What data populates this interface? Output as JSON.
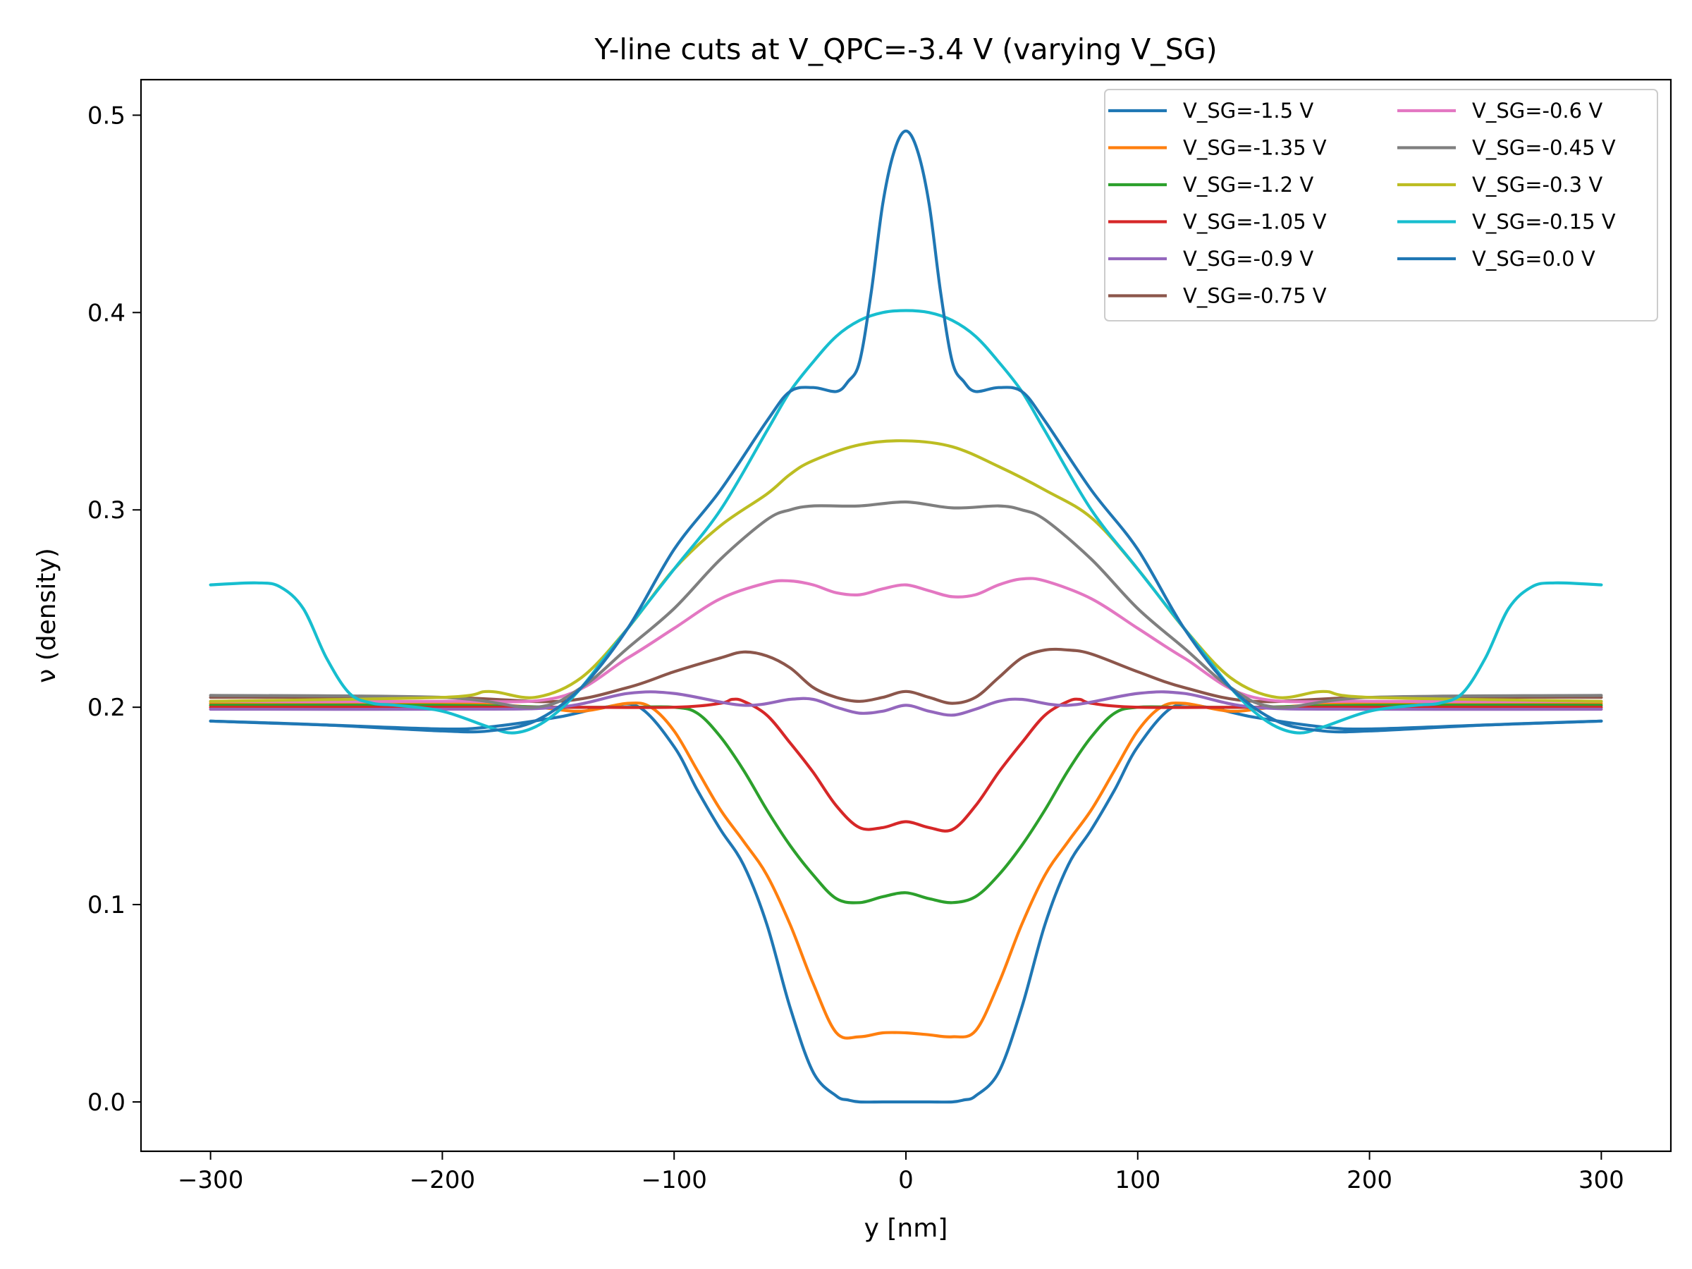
{
  "chart_data": {
    "type": "line",
    "title": "Y-line cuts at V_QPC=-3.4 V (varying V_SG)",
    "xlabel": "y [nm]",
    "ylabel": "ν (density)",
    "xlim": [
      -330,
      330
    ],
    "ylim": [
      -0.025,
      0.518
    ],
    "xticks": [
      -300,
      -200,
      -100,
      0,
      100,
      200,
      300
    ],
    "xtick_labels": [
      "−300",
      "−200",
      "−100",
      "0",
      "100",
      "200",
      "300"
    ],
    "yticks": [
      0.0,
      0.1,
      0.2,
      0.3,
      0.4,
      0.5
    ],
    "ytick_labels": [
      "0.0",
      "0.1",
      "0.2",
      "0.3",
      "0.4",
      "0.5"
    ],
    "legend_position": "upper-right",
    "legend_columns": 2,
    "series": [
      {
        "name": "V_SG=-1.5 V",
        "color": "#1f77b4",
        "x": [
          -300,
          -250,
          -200,
          -180,
          -150,
          -130,
          -115,
          -100,
          -90,
          -80,
          -70,
          -60,
          -50,
          -40,
          -30,
          -25,
          -20,
          -10,
          0,
          10,
          20,
          25,
          30,
          40,
          50,
          60,
          70,
          80,
          90,
          100,
          115,
          130,
          150,
          180,
          200,
          250,
          300
        ],
        "y": [
          0.193,
          0.191,
          0.189,
          0.19,
          0.195,
          0.2,
          0.2,
          0.18,
          0.158,
          0.138,
          0.12,
          0.09,
          0.048,
          0.015,
          0.003,
          0.001,
          0.0,
          0.0,
          0.0,
          0.0,
          0.0,
          0.001,
          0.003,
          0.015,
          0.048,
          0.09,
          0.12,
          0.138,
          0.158,
          0.18,
          0.2,
          0.2,
          0.195,
          0.19,
          0.189,
          0.191,
          0.193
        ]
      },
      {
        "name": "V_SG=-1.35 V",
        "color": "#ff7f0e",
        "x": [
          -300,
          -200,
          -160,
          -140,
          -120,
          -110,
          -100,
          -90,
          -80,
          -70,
          -60,
          -50,
          -40,
          -30,
          -20,
          -10,
          0,
          10,
          20,
          30,
          40,
          50,
          60,
          70,
          80,
          90,
          100,
          110,
          120,
          140,
          160,
          200,
          300
        ],
        "y": [
          0.202,
          0.202,
          0.2,
          0.198,
          0.202,
          0.2,
          0.188,
          0.168,
          0.148,
          0.132,
          0.115,
          0.09,
          0.06,
          0.035,
          0.033,
          0.035,
          0.035,
          0.034,
          0.033,
          0.036,
          0.06,
          0.09,
          0.115,
          0.132,
          0.148,
          0.168,
          0.188,
          0.2,
          0.202,
          0.198,
          0.2,
          0.202,
          0.202
        ]
      },
      {
        "name": "V_SG=-1.2 V",
        "color": "#2ca02c",
        "x": [
          -300,
          -200,
          -150,
          -120,
          -100,
          -90,
          -80,
          -70,
          -60,
          -50,
          -40,
          -30,
          -20,
          -10,
          0,
          10,
          20,
          30,
          40,
          50,
          60,
          70,
          80,
          90,
          100,
          120,
          150,
          200,
          300
        ],
        "y": [
          0.201,
          0.201,
          0.2,
          0.2,
          0.2,
          0.197,
          0.185,
          0.168,
          0.148,
          0.13,
          0.115,
          0.103,
          0.101,
          0.104,
          0.106,
          0.103,
          0.101,
          0.104,
          0.115,
          0.13,
          0.148,
          0.168,
          0.185,
          0.197,
          0.2,
          0.2,
          0.2,
          0.201,
          0.201
        ]
      },
      {
        "name": "V_SG=-1.05 V",
        "color": "#d62728",
        "x": [
          -300,
          -150,
          -100,
          -80,
          -75,
          -70,
          -60,
          -50,
          -40,
          -30,
          -20,
          -10,
          0,
          10,
          20,
          30,
          40,
          50,
          60,
          70,
          75,
          80,
          100,
          150,
          300
        ],
        "y": [
          0.2,
          0.2,
          0.2,
          0.202,
          0.204,
          0.203,
          0.196,
          0.182,
          0.167,
          0.15,
          0.139,
          0.139,
          0.142,
          0.139,
          0.138,
          0.15,
          0.167,
          0.182,
          0.196,
          0.203,
          0.204,
          0.202,
          0.2,
          0.2,
          0.2
        ]
      },
      {
        "name": "V_SG=-0.9 V",
        "color": "#9467bd",
        "x": [
          -300,
          -200,
          -150,
          -120,
          -100,
          -70,
          -50,
          -40,
          -30,
          -20,
          -10,
          0,
          10,
          20,
          30,
          40,
          50,
          70,
          100,
          120,
          150,
          200,
          300
        ],
        "y": [
          0.199,
          0.199,
          0.2,
          0.207,
          0.207,
          0.201,
          0.204,
          0.204,
          0.2,
          0.197,
          0.198,
          0.201,
          0.198,
          0.196,
          0.199,
          0.203,
          0.204,
          0.201,
          0.207,
          0.207,
          0.2,
          0.199,
          0.199
        ]
      },
      {
        "name": "V_SG=-0.75 V",
        "color": "#8c564b",
        "x": [
          -300,
          -200,
          -150,
          -120,
          -100,
          -80,
          -70,
          -60,
          -50,
          -40,
          -30,
          -20,
          -10,
          0,
          10,
          20,
          30,
          40,
          50,
          60,
          70,
          80,
          100,
          120,
          150,
          200,
          300
        ],
        "y": [
          0.205,
          0.205,
          0.203,
          0.21,
          0.218,
          0.225,
          0.228,
          0.226,
          0.22,
          0.21,
          0.205,
          0.203,
          0.205,
          0.208,
          0.205,
          0.202,
          0.205,
          0.215,
          0.225,
          0.229,
          0.229,
          0.227,
          0.218,
          0.21,
          0.203,
          0.205,
          0.205
        ]
      },
      {
        "name": "V_SG=-0.6 V",
        "color": "#e377c2",
        "x": [
          -300,
          -200,
          -150,
          -120,
          -100,
          -80,
          -60,
          -50,
          -40,
          -30,
          -20,
          -10,
          0,
          10,
          20,
          30,
          40,
          50,
          60,
          80,
          100,
          120,
          150,
          200,
          300
        ],
        "y": [
          0.203,
          0.203,
          0.205,
          0.225,
          0.24,
          0.255,
          0.263,
          0.264,
          0.262,
          0.258,
          0.257,
          0.26,
          0.262,
          0.259,
          0.256,
          0.257,
          0.262,
          0.265,
          0.264,
          0.255,
          0.24,
          0.225,
          0.205,
          0.203,
          0.203
        ]
      },
      {
        "name": "V_SG=-0.45 V",
        "color": "#7f7f7f",
        "x": [
          -300,
          -200,
          -160,
          -140,
          -120,
          -100,
          -80,
          -60,
          -50,
          -40,
          -20,
          0,
          20,
          40,
          50,
          60,
          80,
          100,
          120,
          140,
          160,
          200,
          300
        ],
        "y": [
          0.206,
          0.205,
          0.2,
          0.21,
          0.23,
          0.25,
          0.275,
          0.295,
          0.3,
          0.302,
          0.302,
          0.304,
          0.301,
          0.302,
          0.3,
          0.295,
          0.275,
          0.25,
          0.23,
          0.21,
          0.2,
          0.205,
          0.206
        ]
      },
      {
        "name": "V_SG=-0.3 V",
        "color": "#bcbd22",
        "x": [
          -300,
          -200,
          -180,
          -160,
          -140,
          -120,
          -100,
          -80,
          -60,
          -50,
          -40,
          -20,
          0,
          20,
          40,
          60,
          80,
          100,
          120,
          140,
          160,
          180,
          200,
          300
        ],
        "y": [
          0.203,
          0.205,
          0.208,
          0.205,
          0.215,
          0.24,
          0.27,
          0.292,
          0.308,
          0.318,
          0.325,
          0.333,
          0.335,
          0.332,
          0.322,
          0.31,
          0.296,
          0.27,
          0.24,
          0.215,
          0.205,
          0.208,
          0.205,
          0.203
        ]
      },
      {
        "name": "V_SG=-0.15 V",
        "color": "#17becf",
        "x": [
          -300,
          -280,
          -270,
          -260,
          -250,
          -240,
          -230,
          -220,
          -200,
          -180,
          -170,
          -160,
          -150,
          -140,
          -130,
          -120,
          -100,
          -80,
          -60,
          -50,
          -40,
          -30,
          -20,
          -10,
          0,
          10,
          20,
          30,
          40,
          50,
          60,
          80,
          100,
          120,
          130,
          140,
          150,
          160,
          170,
          180,
          200,
          220,
          230,
          240,
          250,
          260,
          270,
          280,
          300
        ],
        "y": [
          0.262,
          0.263,
          0.261,
          0.25,
          0.225,
          0.207,
          0.202,
          0.201,
          0.198,
          0.19,
          0.187,
          0.19,
          0.198,
          0.21,
          0.225,
          0.24,
          0.27,
          0.3,
          0.34,
          0.36,
          0.375,
          0.388,
          0.396,
          0.4,
          0.401,
          0.4,
          0.396,
          0.388,
          0.375,
          0.36,
          0.34,
          0.3,
          0.27,
          0.24,
          0.225,
          0.21,
          0.198,
          0.19,
          0.187,
          0.19,
          0.198,
          0.201,
          0.202,
          0.207,
          0.225,
          0.25,
          0.261,
          0.263,
          0.262
        ]
      },
      {
        "name": "V_SG=0.0 V",
        "color": "#1f77b4",
        "x": [
          -300,
          -250,
          -200,
          -180,
          -160,
          -140,
          -120,
          -100,
          -80,
          -60,
          -50,
          -40,
          -30,
          -25,
          -20,
          -15,
          -10,
          -5,
          0,
          5,
          10,
          15,
          20,
          25,
          30,
          40,
          50,
          60,
          80,
          100,
          120,
          140,
          160,
          180,
          200,
          250,
          300
        ],
        "y": [
          0.193,
          0.191,
          0.188,
          0.188,
          0.193,
          0.21,
          0.24,
          0.28,
          0.31,
          0.345,
          0.36,
          0.362,
          0.36,
          0.365,
          0.375,
          0.41,
          0.455,
          0.482,
          0.492,
          0.482,
          0.455,
          0.41,
          0.375,
          0.365,
          0.36,
          0.362,
          0.36,
          0.345,
          0.31,
          0.28,
          0.24,
          0.21,
          0.193,
          0.188,
          0.188,
          0.191,
          0.193
        ]
      }
    ]
  }
}
